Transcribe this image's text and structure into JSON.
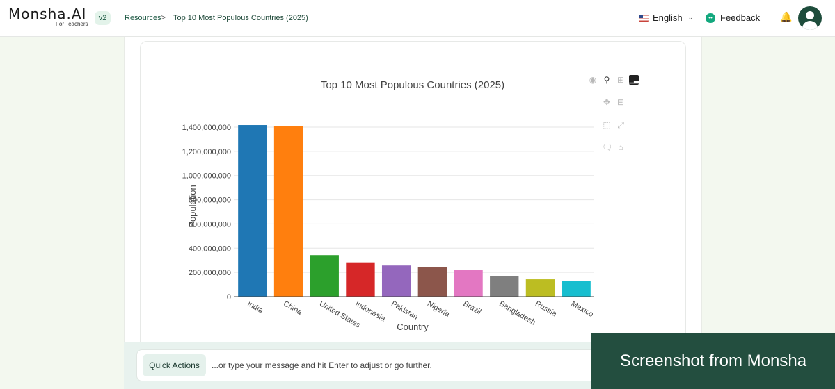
{
  "header": {
    "logo_text": "Monsha.AI",
    "logo_subtitle": "For Teachers",
    "version": "v2",
    "breadcrumb": {
      "root": "Resources",
      "separator": ">",
      "current": "Top 10 Most Populous Countries (2025)"
    },
    "language": "English",
    "feedback_label": "Feedback",
    "icons": {
      "language_flag": "us-flag-icon",
      "feedback": "chat-bubble-icon",
      "notifications": "bell-icon",
      "profile": "user-avatar-icon"
    }
  },
  "chart_toolbar": {
    "icons": [
      "camera-icon",
      "zoom-icon",
      "zoom-in-icon",
      "bar-chart-icon",
      "pan-icon",
      "zoom-out-icon",
      "box-select-icon",
      "autoscale-icon",
      "hover-compare-icon",
      "reset-axes-icon"
    ]
  },
  "chart_data": {
    "type": "bar",
    "title": "Top 10 Most Populous Countries (2025)",
    "xlabel": "Country",
    "ylabel": "Population",
    "categories": [
      "India",
      "China",
      "United States",
      "Indonesia",
      "Pakistan",
      "Nigeria",
      "Brazil",
      "Bangladesh",
      "Russia",
      "Mexico"
    ],
    "values": [
      1417000000,
      1408000000,
      343000000,
      283000000,
      257000000,
      242000000,
      218000000,
      172000000,
      143000000,
      132000000
    ],
    "colors": [
      "#1f77b4",
      "#ff7f0e",
      "#2ca02c",
      "#d62728",
      "#9467bd",
      "#8c564b",
      "#e377c2",
      "#7f7f7f",
      "#bcbd22",
      "#17becf"
    ],
    "ylim": [
      0,
      1400000000
    ],
    "yticks": [
      0,
      200000000,
      400000000,
      600000000,
      800000000,
      1000000000,
      1200000000,
      1400000000
    ],
    "ytick_labels": [
      "0",
      "200,000,000",
      "400,000,000",
      "600,000,000",
      "800,000,000",
      "1,000,000,000",
      "1,200,000,000",
      "1,400,000,000"
    ],
    "grid": true,
    "legend": "none"
  },
  "composer": {
    "quick_actions_label": "Quick Actions",
    "placeholder": "...or type your message and hit Enter to adjust or go further."
  },
  "watermark": "Screenshot from Monsha"
}
